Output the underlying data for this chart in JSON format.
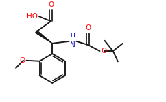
{
  "bg_color": "#ffffff",
  "line_color": "#1a1a1a",
  "o_color": "#ff0000",
  "n_color": "#0000cc",
  "bond_lw": 1.4,
  "font_size": 7.5,
  "fig_width": 2.42,
  "fig_height": 1.5,
  "dpi": 100,
  "xlim": [
    0,
    11
  ],
  "ylim": [
    0,
    7
  ]
}
